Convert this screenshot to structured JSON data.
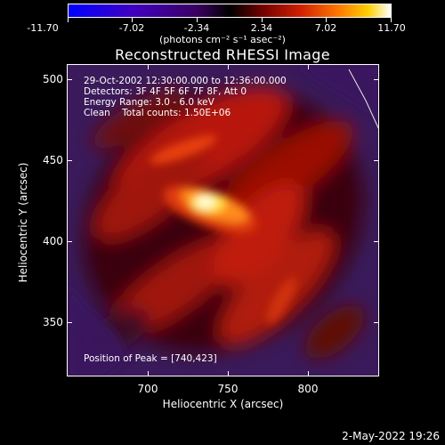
{
  "colorbar": {
    "tick_labels": [
      "-11.70",
      "-7.02",
      "-2.34",
      "2.34",
      "7.02",
      "11.70"
    ],
    "units": "(photons cm⁻² s⁻¹ asec⁻²)"
  },
  "title": "Reconstructed RHESSI Image",
  "info": {
    "time_range": "29-Oct-2002 12:30:00.000 to 12:36:00.000",
    "detectors": "Detectors: 3F 4F 5F 6F 7F 8F, Att 0",
    "energy": "Energy Range: 3.0 - 6.0 keV",
    "clean": "Clean    Total counts: 1.50E+06",
    "peak": "Position of Peak = [740,423]"
  },
  "timestamp": "2-May-2022 19:26",
  "chart_data": {
    "type": "heatmap",
    "title": "Reconstructed RHESSI Image",
    "xlabel": "Heliocentric X (arcsec)",
    "ylabel": "Heliocentric Y (arcsec)",
    "xlim": [
      652,
      843
    ],
    "ylim": [
      314,
      509
    ],
    "x_ticks": [
      700,
      750,
      800
    ],
    "y_ticks": [
      350,
      400,
      450,
      500
    ],
    "colorbar_range": [
      -11.7,
      11.7
    ],
    "peak_position": [
      740,
      423
    ],
    "colormap": "blue-purple-red-yellow-white"
  }
}
